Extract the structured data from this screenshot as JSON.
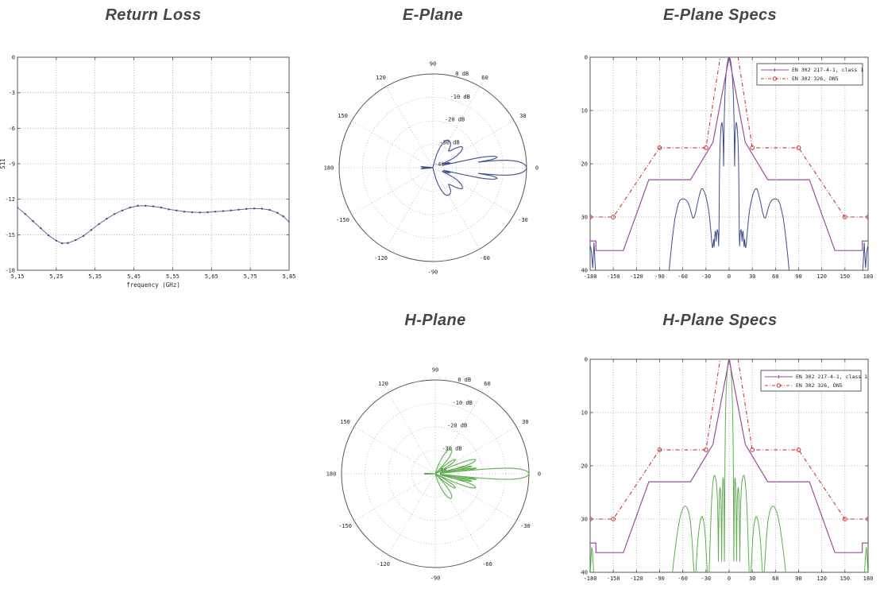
{
  "accent_colors": {
    "return_loss_line": "#5b6ba0",
    "return_loss_marker": "#39497e",
    "e_plane": "#3f4d8f",
    "h_plane": "#5fae50",
    "mask_class1": "#9e4b9e",
    "mask_dn5": "#c93a3a",
    "title_text": "#41474c"
  },
  "patterns": {
    "e_plane_half": [
      [
        0,
        0
      ],
      [
        1,
        -0.2
      ],
      [
        2,
        -0.8
      ],
      [
        3,
        -1.8
      ],
      [
        4,
        -3.3
      ],
      [
        5,
        -5.6
      ],
      [
        5.8,
        -8.5
      ],
      [
        6.4,
        -12
      ],
      [
        6.8,
        -17
      ],
      [
        7.1,
        -20.5
      ],
      [
        7.5,
        -17
      ],
      [
        7.9,
        -14.5
      ],
      [
        8.6,
        -12.8
      ],
      [
        9.3,
        -12.2
      ],
      [
        10,
        -12.6
      ],
      [
        10.8,
        -13.8
      ],
      [
        11.6,
        -16.2
      ],
      [
        12.3,
        -20
      ],
      [
        12.8,
        -26
      ],
      [
        13.2,
        -33
      ],
      [
        13.6,
        -35.5
      ],
      [
        14.1,
        -33.5
      ],
      [
        14.7,
        -32.6
      ],
      [
        15.4,
        -32.4
      ],
      [
        16.2,
        -33.2
      ],
      [
        16.8,
        -34.6
      ],
      [
        17.4,
        -33
      ],
      [
        18,
        -32.6
      ],
      [
        18.7,
        -33.8
      ],
      [
        19.3,
        -35.6
      ],
      [
        20,
        -34.2
      ],
      [
        20.8,
        -35.4
      ],
      [
        21.6,
        -35.8
      ],
      [
        22.5,
        -34.6
      ],
      [
        23.6,
        -32.8
      ],
      [
        25,
        -30.5
      ],
      [
        26.6,
        -28.6
      ],
      [
        28.4,
        -27.2
      ],
      [
        30.3,
        -26
      ],
      [
        32.3,
        -25.2
      ],
      [
        34.2,
        -24.7
      ],
      [
        35.8,
        -24.7
      ],
      [
        37.4,
        -25.3
      ],
      [
        39.2,
        -26.3
      ],
      [
        41.2,
        -27.6
      ],
      [
        43.4,
        -29.2
      ],
      [
        45.5,
        -30.1
      ],
      [
        47,
        -30.2
      ],
      [
        48.6,
        -29.5
      ],
      [
        50.5,
        -28.4
      ],
      [
        52.5,
        -27.5
      ],
      [
        55,
        -26.9
      ],
      [
        58,
        -26.6
      ],
      [
        61,
        -26.6
      ],
      [
        63.5,
        -26.8
      ],
      [
        66,
        -27.6
      ],
      [
        68,
        -28.8
      ],
      [
        70,
        -30.2
      ],
      [
        72,
        -32.2
      ],
      [
        74,
        -34.6
      ],
      [
        76,
        -37.4
      ],
      [
        78,
        -40.5
      ],
      [
        80,
        -43
      ],
      [
        90,
        -47
      ],
      [
        120,
        -48
      ],
      [
        165,
        -48
      ],
      [
        172,
        -43
      ],
      [
        174,
        -37.5
      ],
      [
        175,
        -34.8
      ],
      [
        175.9,
        -37.6
      ],
      [
        176.7,
        -39.6
      ],
      [
        177.5,
        -37.8
      ],
      [
        178.3,
        -36.6
      ],
      [
        179.1,
        -35.8
      ],
      [
        180,
        -35.4
      ]
    ],
    "h_plane_half": [
      [
        0,
        0
      ],
      [
        1,
        -0.35
      ],
      [
        2,
        -1.4
      ],
      [
        3,
        -3.4
      ],
      [
        3.8,
        -6
      ],
      [
        4.4,
        -9
      ],
      [
        4.9,
        -13
      ],
      [
        5.4,
        -19
      ],
      [
        5.8,
        -28
      ],
      [
        6.1,
        -38
      ],
      [
        6.45,
        -30
      ],
      [
        6.85,
        -25
      ],
      [
        7.3,
        -22.6
      ],
      [
        7.8,
        -22.2
      ],
      [
        8.3,
        -23.4
      ],
      [
        8.8,
        -26
      ],
      [
        9.3,
        -31
      ],
      [
        9.7,
        -38
      ],
      [
        10.1,
        -31
      ],
      [
        10.6,
        -26.6
      ],
      [
        11.2,
        -24.6
      ],
      [
        11.8,
        -24
      ],
      [
        12.4,
        -25
      ],
      [
        13,
        -27.6
      ],
      [
        13.5,
        -32
      ],
      [
        13.9,
        -38
      ],
      [
        14.4,
        -31
      ],
      [
        15,
        -26.8
      ],
      [
        15.7,
        -24.4
      ],
      [
        16.5,
        -23.2
      ],
      [
        17.4,
        -22.4
      ],
      [
        18.3,
        -21.9
      ],
      [
        19.2,
        -21.8
      ],
      [
        20.1,
        -22.2
      ],
      [
        21,
        -23.2
      ],
      [
        22,
        -25
      ],
      [
        23,
        -27.8
      ],
      [
        24,
        -31.5
      ],
      [
        25,
        -36
      ],
      [
        26,
        -40.5
      ],
      [
        27.5,
        -42
      ],
      [
        29,
        -38
      ],
      [
        30.5,
        -33.8
      ],
      [
        32,
        -31.3
      ],
      [
        33.5,
        -30
      ],
      [
        35,
        -29.5
      ],
      [
        36.5,
        -29.8
      ],
      [
        38,
        -30.8
      ],
      [
        39.5,
        -32.5
      ],
      [
        41,
        -35
      ],
      [
        42.5,
        -38.5
      ],
      [
        44,
        -42
      ],
      [
        46,
        -39
      ],
      [
        48,
        -34
      ],
      [
        50,
        -30.6
      ],
      [
        52,
        -28.9
      ],
      [
        54,
        -28
      ],
      [
        56,
        -27.6
      ],
      [
        58,
        -27.6
      ],
      [
        60,
        -28.1
      ],
      [
        62,
        -28.8
      ],
      [
        64,
        -30
      ],
      [
        66,
        -31.6
      ],
      [
        68,
        -33.6
      ],
      [
        70,
        -35.8
      ],
      [
        72,
        -38.2
      ],
      [
        74,
        -41
      ],
      [
        80,
        -46
      ],
      [
        90,
        -48
      ],
      [
        120,
        -48
      ],
      [
        168,
        -48
      ],
      [
        174,
        -44
      ],
      [
        176,
        -38.5
      ],
      [
        177,
        -36
      ],
      [
        177.9,
        -35.3
      ],
      [
        178.7,
        -37
      ],
      [
        179.4,
        -39
      ],
      [
        180,
        -41
      ]
    ]
  },
  "masks": {
    "en302217_class1": [
      [
        -180,
        -34.5
      ],
      [
        -172.5,
        -34.5
      ],
      [
        -172.5,
        -36.3
      ],
      [
        -137,
        -36.3
      ],
      [
        -104,
        -23
      ],
      [
        -50,
        -23
      ],
      [
        -21,
        -16
      ],
      [
        0,
        0
      ],
      [
        21,
        -16
      ],
      [
        50,
        -23
      ],
      [
        104,
        -23
      ],
      [
        137,
        -36.3
      ],
      [
        172.5,
        -36.3
      ],
      [
        172.5,
        -34.5
      ],
      [
        180,
        -34.5
      ]
    ],
    "en302326_dn5": [
      [
        -180,
        -30
      ],
      [
        -150,
        -30
      ],
      [
        -90,
        -17
      ],
      [
        -30,
        -17
      ],
      [
        -10.5,
        1
      ],
      [
        10.5,
        1
      ],
      [
        30,
        -17
      ],
      [
        90,
        -17
      ],
      [
        150,
        -30
      ],
      [
        180,
        -30
      ]
    ],
    "en302326_markers": [
      [
        -180,
        -30
      ],
      [
        -150,
        -30
      ],
      [
        -90,
        -17
      ],
      [
        -30,
        -17
      ],
      [
        30,
        -17
      ],
      [
        90,
        -17
      ],
      [
        150,
        -30
      ],
      [
        180,
        -30
      ]
    ]
  },
  "chart_data": [
    {
      "id": "return-loss",
      "type": "line",
      "title": "Return Loss",
      "xlabel": "frequency (GHz)",
      "ylabel": "S11",
      "xlim": [
        5.15,
        5.85
      ],
      "ylim": [
        -18,
        0
      ],
      "xticks": [
        {
          "v": 5.15,
          "l": "5,15"
        },
        {
          "v": 5.25,
          "l": "5,25"
        },
        {
          "v": 5.35,
          "l": "5,35"
        },
        {
          "v": 5.45,
          "l": "5,45"
        },
        {
          "v": 5.55,
          "l": "5,55"
        },
        {
          "v": 5.65,
          "l": "5,65"
        },
        {
          "v": 5.75,
          "l": "5,75"
        },
        {
          "v": 5.85,
          "l": "5,85"
        }
      ],
      "yticks": [
        {
          "v": 0,
          "l": "0"
        },
        {
          "v": -3,
          "l": "-3"
        },
        {
          "v": -6,
          "l": "-6"
        },
        {
          "v": -9,
          "l": "-9"
        },
        {
          "v": -12,
          "l": "-12"
        },
        {
          "v": -15,
          "l": "-15"
        },
        {
          "v": -18,
          "l": "-18"
        }
      ],
      "points": [
        [
          5.15,
          -12.7
        ],
        [
          5.17,
          -13.25
        ],
        [
          5.19,
          -13.85
        ],
        [
          5.21,
          -14.45
        ],
        [
          5.23,
          -15.05
        ],
        [
          5.25,
          -15.5
        ],
        [
          5.265,
          -15.72
        ],
        [
          5.28,
          -15.7
        ],
        [
          5.3,
          -15.45
        ],
        [
          5.32,
          -15.1
        ],
        [
          5.34,
          -14.6
        ],
        [
          5.36,
          -14.1
        ],
        [
          5.38,
          -13.65
        ],
        [
          5.4,
          -13.25
        ],
        [
          5.42,
          -12.95
        ],
        [
          5.44,
          -12.7
        ],
        [
          5.46,
          -12.55
        ],
        [
          5.48,
          -12.55
        ],
        [
          5.5,
          -12.6
        ],
        [
          5.52,
          -12.7
        ],
        [
          5.54,
          -12.85
        ],
        [
          5.56,
          -12.95
        ],
        [
          5.58,
          -13.05
        ],
        [
          5.6,
          -13.1
        ],
        [
          5.62,
          -13.12
        ],
        [
          5.64,
          -13.1
        ],
        [
          5.66,
          -13.05
        ],
        [
          5.68,
          -13.0
        ],
        [
          5.7,
          -12.95
        ],
        [
          5.72,
          -12.88
        ],
        [
          5.74,
          -12.82
        ],
        [
          5.76,
          -12.78
        ],
        [
          5.78,
          -12.8
        ],
        [
          5.8,
          -12.9
        ],
        [
          5.82,
          -13.15
        ],
        [
          5.835,
          -13.45
        ],
        [
          5.85,
          -13.9
        ]
      ]
    },
    {
      "id": "e-plane-polar",
      "type": "polar",
      "title": "E-Plane",
      "pattern": "e_plane_half",
      "color": "#3f4d8f",
      "rmin_db": -40,
      "ring_labels": [
        {
          "v": 0,
          "l": "0 dB"
        },
        {
          "v": -10,
          "l": "-10 dB"
        },
        {
          "v": -20,
          "l": "-20 dB"
        },
        {
          "v": -30,
          "l": "-30 dB"
        },
        {
          "v": -40,
          "l": "-40"
        }
      ],
      "angle_labels": [
        {
          "a": 0,
          "l": "0"
        },
        {
          "a": 30,
          "l": "30"
        },
        {
          "a": 60,
          "l": "60"
        },
        {
          "a": 90,
          "l": "90"
        },
        {
          "a": 120,
          "l": "120"
        },
        {
          "a": 150,
          "l": "150"
        },
        {
          "a": 180,
          "l": "180"
        },
        {
          "a": -150,
          "l": "-150"
        },
        {
          "a": -120,
          "l": "-120"
        },
        {
          "a": -90,
          "l": "-90"
        },
        {
          "a": -60,
          "l": "-60"
        },
        {
          "a": -30,
          "l": "-30"
        }
      ]
    },
    {
      "id": "e-plane-specs",
      "type": "specs",
      "title": "E-Plane Specs",
      "pattern": "e_plane_half",
      "color": "#3f4d8f",
      "xlim": [
        -180,
        180
      ],
      "ylim": [
        -40,
        0
      ],
      "xticks": [
        {
          "v": -180,
          "l": "-180"
        },
        {
          "v": -150,
          "l": "-150"
        },
        {
          "v": -120,
          "l": "-120"
        },
        {
          "v": -90,
          "l": "-90"
        },
        {
          "v": -60,
          "l": "-60"
        },
        {
          "v": -30,
          "l": "-30"
        },
        {
          "v": 0,
          "l": "0"
        },
        {
          "v": 30,
          "l": "30"
        },
        {
          "v": 60,
          "l": "60"
        },
        {
          "v": 90,
          "l": "90"
        },
        {
          "v": 120,
          "l": "120"
        },
        {
          "v": 150,
          "l": "150"
        },
        {
          "v": 180,
          "l": "180"
        }
      ],
      "yticks": [
        {
          "v": 0,
          "l": "0"
        },
        {
          "v": -10,
          "l": "-10"
        },
        {
          "v": -20,
          "l": "-20"
        },
        {
          "v": -30,
          "l": "-30"
        },
        {
          "v": -40,
          "l": "-40"
        }
      ],
      "legend": [
        {
          "label": "EN 302 217-4-1, class 1",
          "color": "#9e4b9e",
          "style": "solid",
          "marker": "plus"
        },
        {
          "label": "EN 302 326, DN5",
          "color": "#c93a3a",
          "style": "dashdot",
          "marker": "circle"
        }
      ]
    },
    {
      "id": "h-plane-polar",
      "type": "polar",
      "title": "H-Plane",
      "pattern": "h_plane_half",
      "color": "#5fae50",
      "rmin_db": -40,
      "ring_labels": [
        {
          "v": 0,
          "l": "0 dB"
        },
        {
          "v": -10,
          "l": "-10 dB"
        },
        {
          "v": -20,
          "l": "-20 dB"
        },
        {
          "v": -30,
          "l": "-30 dB"
        },
        {
          "v": -40,
          "l": "-40"
        }
      ],
      "angle_labels": [
        {
          "a": 0,
          "l": "0"
        },
        {
          "a": 30,
          "l": "30"
        },
        {
          "a": 60,
          "l": "60"
        },
        {
          "a": 90,
          "l": "90"
        },
        {
          "a": 120,
          "l": "120"
        },
        {
          "a": 150,
          "l": "150"
        },
        {
          "a": 180,
          "l": "180"
        },
        {
          "a": -150,
          "l": "-150"
        },
        {
          "a": -120,
          "l": "-120"
        },
        {
          "a": -90,
          "l": "-90"
        },
        {
          "a": -60,
          "l": "-60"
        },
        {
          "a": -30,
          "l": "-30"
        }
      ]
    },
    {
      "id": "h-plane-specs",
      "type": "specs",
      "title": "H-Plane Specs",
      "pattern": "h_plane_half",
      "color": "#5fae50",
      "xlim": [
        -180,
        180
      ],
      "ylim": [
        -40,
        0
      ],
      "xticks": [
        {
          "v": -180,
          "l": "-180"
        },
        {
          "v": -150,
          "l": "-150"
        },
        {
          "v": -120,
          "l": "-120"
        },
        {
          "v": -90,
          "l": "-90"
        },
        {
          "v": -60,
          "l": "-60"
        },
        {
          "v": -30,
          "l": "-30"
        },
        {
          "v": 0,
          "l": "0"
        },
        {
          "v": 30,
          "l": "30"
        },
        {
          "v": 60,
          "l": "60"
        },
        {
          "v": 90,
          "l": "90"
        },
        {
          "v": 120,
          "l": "120"
        },
        {
          "v": 150,
          "l": "150"
        },
        {
          "v": 180,
          "l": "180"
        }
      ],
      "yticks": [
        {
          "v": 0,
          "l": "0"
        },
        {
          "v": -10,
          "l": "-10"
        },
        {
          "v": -20,
          "l": "-20"
        },
        {
          "v": -30,
          "l": "-30"
        },
        {
          "v": -40,
          "l": "-40"
        }
      ],
      "legend": [
        {
          "label": "EN 302 217-4-1, class 1",
          "color": "#9e4b9e",
          "style": "solid",
          "marker": "plus"
        },
        {
          "label": "EN 302 326, DN5",
          "color": "#c93a3a",
          "style": "dashdot",
          "marker": "circle"
        }
      ]
    }
  ]
}
